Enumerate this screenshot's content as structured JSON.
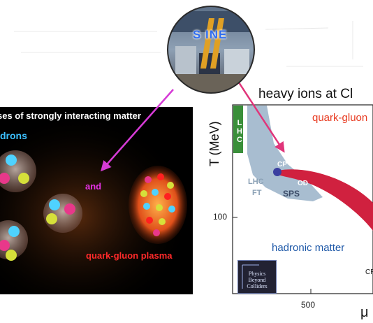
{
  "logo": {
    "text": "S INE"
  },
  "left_panel": {
    "title": "ses of strongly interacting matter",
    "hadrons_label": "drons",
    "and_label": "and",
    "qgp_label": "quark-gluon plasma"
  },
  "right_panel": {
    "title": "heavy ions at Cl",
    "qgp_label": "quark-gluon",
    "y_axis_label": "T (MeV)",
    "y_tick": "100",
    "x_tick": "500",
    "x_axis_label": "μ",
    "lhc_vertical": [
      "L",
      "H",
      "C"
    ],
    "cp_label": "CP",
    "od_label": "OD",
    "lhc_ft_line1": "LHC",
    "lhc_ft_line2": "FT",
    "sps_label": "SPS",
    "hadronic_label": "hadronic matter",
    "cr_label": "CR",
    "pbc_logo_lines": [
      "Physics",
      "Beyond",
      "Colliders"
    ]
  },
  "colors": {
    "arrow": "#d63bd6",
    "arrow_right": "#e0357a",
    "qgp_band": "#d0213f",
    "lhc_band": "#3a8f3a",
    "ft_region": "#9fb6cb",
    "hadrons": "#3cc0ff",
    "qgp_left": "#ff2a2a"
  }
}
